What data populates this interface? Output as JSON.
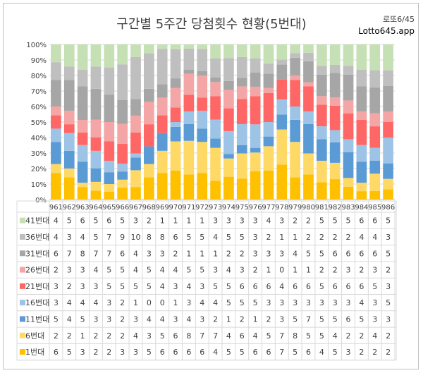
{
  "header": {
    "title": "구간별 5주간 당첨횟수 현황(5번대)",
    "brand": "로또6/45",
    "site": "Lotto645.app"
  },
  "chart_data": {
    "type": "bar",
    "stacked": "percent",
    "title": "구간별 5주간 당첨횟수 현황(5번대)",
    "ylim": [
      0,
      100
    ],
    "yticks": [
      "0%",
      "10%",
      "20%",
      "30%",
      "40%",
      "50%",
      "60%",
      "70%",
      "80%",
      "90%",
      "100%"
    ],
    "categories": [
      "961",
      "962",
      "963",
      "964",
      "965",
      "966",
      "967",
      "968",
      "969",
      "970",
      "971",
      "972",
      "973",
      "974",
      "975",
      "976",
      "977",
      "978",
      "979",
      "980",
      "981",
      "982",
      "983",
      "984",
      "985",
      "986"
    ],
    "series": [
      {
        "name": "1번대",
        "color": "#FFC000",
        "values": [
          6,
          5,
          3,
          2,
          2,
          3,
          3,
          5,
          6,
          6,
          6,
          6,
          4,
          5,
          5,
          6,
          6,
          7,
          5,
          6,
          4,
          5,
          3,
          2,
          2,
          2
        ]
      },
      {
        "name": "6번대",
        "color": "#FFD966",
        "values": [
          2,
          2,
          1,
          2,
          2,
          2,
          4,
          3,
          5,
          6,
          8,
          7,
          7,
          4,
          6,
          4,
          5,
          7,
          8,
          5,
          5,
          4,
          2,
          2,
          4,
          2
        ]
      },
      {
        "name": "11번대",
        "color": "#5B9BD5",
        "values": [
          5,
          4,
          5,
          3,
          3,
          2,
          3,
          4,
          4,
          3,
          4,
          3,
          2,
          1,
          2,
          1,
          2,
          3,
          5,
          7,
          5,
          5,
          6,
          5,
          3,
          3
        ]
      },
      {
        "name": "16번대",
        "color": "#9DC3E6",
        "values": [
          3,
          4,
          4,
          4,
          3,
          2,
          1,
          0,
          0,
          1,
          3,
          4,
          4,
          5,
          5,
          5,
          3,
          3,
          3,
          3,
          3,
          3,
          3,
          4,
          3,
          5
        ]
      },
      {
        "name": "21번대",
        "color": "#FF6666",
        "values": [
          3,
          2,
          3,
          3,
          5,
          5,
          5,
          5,
          4,
          3,
          4,
          3,
          5,
          5,
          6,
          6,
          6,
          4,
          6,
          6,
          5,
          6,
          6,
          6,
          5,
          3
        ]
      },
      {
        "name": "26번대",
        "color": "#F4A6A6",
        "values": [
          2,
          3,
          3,
          4,
          5,
          5,
          4,
          5,
          4,
          4,
          5,
          5,
          3,
          4,
          3,
          2,
          1,
          0,
          1,
          1,
          2,
          2,
          3,
          2,
          3,
          2
        ]
      },
      {
        "name": "31번대",
        "color": "#A6A6A6",
        "values": [
          6,
          7,
          8,
          7,
          7,
          6,
          4,
          3,
          3,
          2,
          1,
          1,
          1,
          2,
          2,
          3,
          3,
          3,
          4,
          5,
          5,
          6,
          6,
          6,
          6,
          5
        ]
      },
      {
        "name": "36번대",
        "color": "#BFBFBF",
        "values": [
          4,
          3,
          4,
          5,
          7,
          9,
          10,
          8,
          8,
          6,
          5,
          5,
          4,
          5,
          5,
          3,
          2,
          1,
          1,
          2,
          2,
          2,
          2,
          4,
          4,
          3
        ]
      },
      {
        "name": "41번대",
        "color": "#C5E0B4",
        "values": [
          4,
          5,
          6,
          5,
          6,
          5,
          3,
          2,
          1,
          1,
          1,
          1,
          3,
          3,
          3,
          3,
          4,
          3,
          2,
          2,
          5,
          5,
          5,
          6,
          6,
          5
        ]
      }
    ]
  }
}
